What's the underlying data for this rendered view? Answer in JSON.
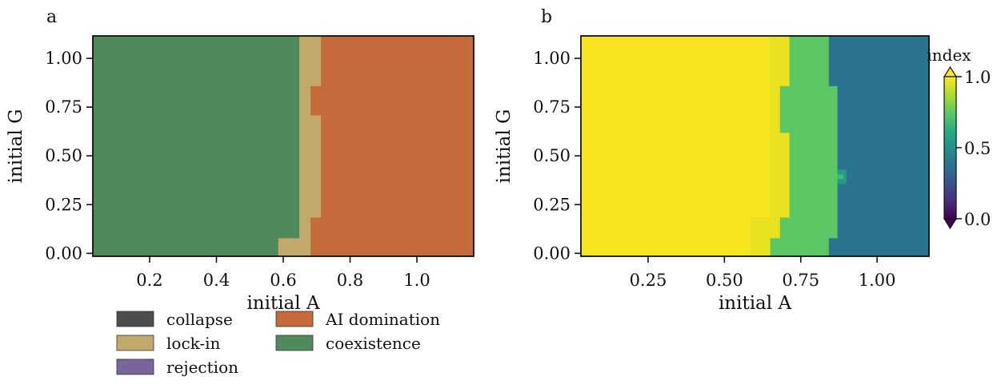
{
  "chart_data": [
    {
      "type": "heatmap",
      "panel_label": "a",
      "xlabel": "initial A",
      "ylabel": "initial G",
      "xlim": [
        0.03,
        1.17
      ],
      "ylim": [
        -0.015,
        1.115
      ],
      "xticks": [
        0.2,
        0.4,
        0.6,
        0.8,
        1.0
      ],
      "xtick_labels": [
        "0.2",
        "0.4",
        "0.6",
        "0.8",
        "1.0"
      ],
      "yticks": [
        0.0,
        0.25,
        0.5,
        0.75,
        1.0
      ],
      "ytick_labels": [
        "0.00",
        "0.25",
        "0.50",
        "0.75",
        "1.00"
      ],
      "categories": [
        {
          "key": "collapse",
          "name": "collapse",
          "color": "#4d4d4d"
        },
        {
          "key": "lockin",
          "name": "lock-in",
          "color": "#c1a96c"
        },
        {
          "key": "rejection",
          "name": "rejection",
          "color": "#7a649c"
        },
        {
          "key": "ai",
          "name": "AI domination",
          "color": "#c56a3a"
        },
        {
          "key": "coexistence",
          "name": "coexistence",
          "color": "#4e8a5b"
        }
      ],
      "regions": [
        {
          "y_range": [
            -0.015,
            0.08
          ],
          "coexistence_until": 0.585,
          "lockin_until": 0.682
        },
        {
          "y_range": [
            0.08,
            0.186
          ],
          "coexistence_until": 0.648,
          "lockin_until": 0.682
        },
        {
          "y_range": [
            0.186,
            0.43
          ],
          "coexistence_until": 0.648,
          "lockin_until": 0.713
        },
        {
          "y_range": [
            0.43,
            0.62
          ],
          "coexistence_until": 0.648,
          "lockin_until": 0.713
        },
        {
          "y_range": [
            0.62,
            0.71
          ],
          "coexistence_until": 0.648,
          "lockin_until": 0.713
        },
        {
          "y_range": [
            0.71,
            0.86
          ],
          "coexistence_until": 0.648,
          "lockin_until": 0.682
        },
        {
          "y_range": [
            0.86,
            1.115
          ],
          "coexistence_until": 0.648,
          "lockin_until": 0.713
        }
      ],
      "legend": {
        "placement": "below",
        "columns": 2
      }
    },
    {
      "type": "heatmap",
      "panel_label": "b",
      "xlabel": "initial A",
      "ylabel": "initial G",
      "xlim": [
        0.03,
        1.17
      ],
      "ylim": [
        -0.015,
        1.115
      ],
      "xticks": [
        0.25,
        0.5,
        0.75,
        1.0
      ],
      "xtick_labels": [
        "0.25",
        "0.50",
        "0.75",
        "1.00"
      ],
      "yticks": [
        0.0,
        0.25,
        0.5,
        0.75,
        1.0
      ],
      "ytick_labels": [
        "0.00",
        "0.25",
        "0.50",
        "0.75",
        "1.00"
      ],
      "colormap": "viridis",
      "colorbar": {
        "title": "index",
        "range": [
          0.0,
          1.0
        ],
        "ticks": [
          0.0,
          0.5,
          1.0
        ],
        "tick_labels": [
          "0.0",
          "0.5",
          "1.0"
        ],
        "extend": "both"
      },
      "bands": [
        {
          "value": 0.985,
          "color": "#f6e51e"
        },
        {
          "value": 0.96,
          "color": "#e8e220"
        },
        {
          "value": 0.78,
          "color": "#5cc764"
        },
        {
          "value": 0.42,
          "color": "#2b7490"
        }
      ],
      "boundaries": [
        {
          "y_range": [
            -0.015,
            0.08
          ],
          "b1": 0.585,
          "b2": 0.65,
          "b3": 0.81,
          "b4": 0.842
        },
        {
          "y_range": [
            0.08,
            0.186
          ],
          "b1": 0.585,
          "b2": 0.682,
          "b3": 0.842,
          "b4": 0.87
        },
        {
          "y_range": [
            0.186,
            0.43
          ],
          "b1": 0.648,
          "b2": 0.713,
          "b3": 0.87,
          "b4": 0.87
        },
        {
          "y_range": [
            0.43,
            0.62
          ],
          "b1": 0.648,
          "b2": 0.713,
          "b3": 0.87,
          "b4": 0.87
        },
        {
          "y_range": [
            0.62,
            0.71
          ],
          "b1": 0.648,
          "b2": 0.682,
          "b3": 0.87,
          "b4": 0.87
        },
        {
          "y_range": [
            0.71,
            0.86
          ],
          "b1": 0.648,
          "b2": 0.682,
          "b3": 0.842,
          "b4": 0.87
        },
        {
          "y_range": [
            0.86,
            1.115
          ],
          "b1": 0.648,
          "b2": 0.713,
          "b3": 0.842,
          "b4": 0.842
        }
      ],
      "extra_cells": [
        {
          "x": [
            0.87,
            0.9
          ],
          "y": [
            0.355,
            0.43
          ],
          "value": 0.64
        },
        {
          "x": [
            0.87,
            0.89
          ],
          "y": [
            0.38,
            0.405
          ],
          "value": 0.7
        }
      ]
    }
  ]
}
